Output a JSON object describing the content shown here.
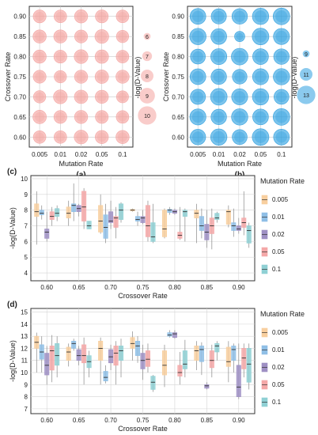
{
  "chart_data": [
    {
      "id": "a",
      "panel_label": "(a)",
      "type": "scatter",
      "xlabel": "Mutation Rate",
      "ylabel": "Crossover Rate",
      "x_categories": [
        "0.005",
        "0.01",
        "0.02",
        "0.05",
        "0.1"
      ],
      "y_categories": [
        "0.60",
        "0.65",
        "0.70",
        "0.75",
        "0.80",
        "0.85",
        "0.90"
      ],
      "color": "#f4a29e",
      "size_legend_title": "-log(D-Value)",
      "size_legend": [
        "6",
        "7",
        "8",
        "9",
        "10"
      ],
      "size_range": [
        5,
        11
      ],
      "values": [
        [
          8.0,
          8.0,
          8.4,
          8.2,
          8.2
        ],
        [
          8.3,
          8.1,
          8.2,
          8.1,
          8.0
        ],
        [
          7.9,
          8.4,
          8.3,
          8.2,
          7.8
        ],
        [
          8.1,
          7.9,
          8.2,
          8.3,
          8.2
        ],
        [
          8.2,
          8.1,
          8.4,
          8.3,
          8.0
        ],
        [
          8.2,
          8.2,
          8.1,
          8.4,
          7.9
        ],
        [
          8.1,
          8.0,
          8.2,
          8.1,
          8.0
        ]
      ]
    },
    {
      "id": "b",
      "panel_label": "(b)",
      "type": "scatter",
      "xlabel": "Mutation Rate",
      "ylabel": "Crossover Rate",
      "x_categories": [
        "0.005",
        "0.01",
        "0.02",
        "0.05",
        "0.1"
      ],
      "y_categories": [
        "0.60",
        "0.65",
        "0.70",
        "0.75",
        "0.80",
        "0.85",
        "0.90"
      ],
      "color": "#2b9fe0",
      "size_legend_title": "-log(D-Value)",
      "size_legend": [
        "9",
        "11",
        "13"
      ],
      "size_range": [
        8,
        14
      ],
      "values": [
        [
          12.0,
          12.3,
          11.8,
          12.4,
          12.1
        ],
        [
          12.2,
          12.0,
          12.3,
          12.1,
          12.4
        ],
        [
          11.9,
          12.4,
          12.2,
          12.3,
          11.8
        ],
        [
          12.1,
          12.0,
          11.7,
          12.2,
          12.3
        ],
        [
          11.8,
          12.2,
          12.4,
          12.1,
          12.0
        ],
        [
          12.3,
          12.1,
          10.2,
          12.4,
          12.2
        ],
        [
          12.1,
          11.9,
          12.0,
          12.3,
          12.4
        ]
      ]
    },
    {
      "id": "c",
      "panel_label": "(c)",
      "type": "box",
      "xlabel": "Crossover Rate",
      "ylabel": "-log(D-Value)",
      "categories": [
        "0.60",
        "0.65",
        "0.70",
        "0.75",
        "0.80",
        "0.85",
        "0.90"
      ],
      "ylim": [
        3.5,
        10.2
      ],
      "yticks": [
        "4",
        "5",
        "6",
        "7",
        "8",
        "9",
        "10"
      ],
      "legend_title": "Mutation Rate",
      "series": [
        {
          "name": "0.005",
          "color": "#f8cf9f",
          "boxes": [
            [
              5.8,
              7.6,
              7.9,
              8.4,
              9.2
            ],
            [
              7.0,
              7.5,
              7.8,
              8.2,
              8.6
            ],
            [
              6.5,
              6.6,
              7.3,
              8.3,
              9.0
            ],
            [
              7.9,
              7.95,
              8.0,
              8.05,
              8.1
            ],
            [
              6.2,
              6.3,
              6.8,
              8.0,
              8.1
            ],
            [
              5.9,
              7.5,
              7.8,
              8.0,
              8.4
            ],
            [
              6.9,
              7.1,
              7.9,
              8.0,
              8.3
            ]
          ]
        },
        {
          "name": "0.01",
          "color": "#8fbfe6",
          "boxes": [
            [
              7.4,
              7.7,
              7.8,
              8.0,
              8.3
            ],
            [
              7.3,
              7.9,
              8.3,
              8.4,
              9.7
            ],
            [
              5.9,
              6.2,
              6.9,
              7.7,
              8.4
            ],
            [
              7.0,
              7.3,
              7.4,
              7.6,
              7.9
            ],
            [
              7.7,
              7.85,
              8.0,
              8.05,
              8.2
            ],
            [
              6.2,
              6.7,
              7.0,
              7.6,
              8.1
            ],
            [
              6.3,
              6.7,
              7.0,
              7.2,
              8.1
            ]
          ]
        },
        {
          "name": "0.02",
          "color": "#9f90c4",
          "boxes": [
            [
              6.0,
              6.2,
              6.6,
              6.8,
              7.9
            ],
            [
              7.6,
              7.9,
              8.1,
              8.3,
              8.4
            ],
            [
              6.8,
              7.2,
              7.3,
              7.9,
              8.6
            ],
            [
              7.1,
              7.2,
              7.5,
              7.6,
              8.0
            ],
            [
              7.7,
              7.8,
              7.9,
              8.0,
              8.1
            ],
            [
              5.6,
              6.1,
              6.6,
              7.1,
              8.0
            ],
            [
              6.5,
              6.7,
              6.8,
              7.0,
              7.5
            ]
          ]
        },
        {
          "name": "0.05",
          "color": "#f4a8a8",
          "boxes": [
            [
              7.0,
              7.4,
              7.6,
              7.9,
              8.2
            ],
            [
              6.8,
              7.3,
              8.2,
              9.2,
              9.4
            ],
            [
              6.2,
              6.9,
              7.5,
              7.6,
              8.2
            ],
            [
              6.0,
              6.3,
              7.0,
              8.3,
              8.6
            ],
            [
              6.1,
              6.2,
              6.4,
              6.6,
              8.2
            ],
            [
              5.5,
              6.5,
              7.0,
              7.5,
              8.1
            ],
            [
              6.4,
              6.9,
              7.2,
              7.5,
              9.2
            ]
          ]
        },
        {
          "name": "0.1",
          "color": "#8fd0d4",
          "boxes": [
            [
              7.3,
              7.6,
              7.8,
              8.1,
              8.3
            ],
            [
              6.8,
              6.8,
              7.0,
              7.3,
              7.3
            ],
            [
              7.2,
              7.4,
              8.0,
              8.4,
              8.5
            ],
            [
              5.9,
              6.0,
              6.3,
              7.2,
              8.4
            ],
            [
              6.0,
              7.6,
              7.9,
              8.0,
              8.1
            ],
            [
              7.2,
              7.4,
              7.5,
              7.8,
              7.9
            ],
            [
              5.6,
              5.9,
              6.7,
              7.0,
              7.2
            ]
          ]
        }
      ]
    },
    {
      "id": "d",
      "panel_label": "(d)",
      "type": "box",
      "xlabel": "Crossover Rate",
      "ylabel": "-log(D-Value)",
      "categories": [
        "0.60",
        "0.65",
        "0.70",
        "0.75",
        "0.80",
        "0.85",
        "0.90"
      ],
      "ylim": [
        6.6,
        15.3
      ],
      "yticks": [
        "7",
        "8",
        "9",
        "10",
        "11",
        "12",
        "13",
        "14",
        "15"
      ],
      "legend_title": "Mutation Rate",
      "series": [
        {
          "name": "0.005",
          "color": "#f8cf9f",
          "boxes": [
            [
              10.0,
              12.0,
              12.5,
              13.0,
              13.3
            ],
            [
              10.5,
              11.0,
              11.7,
              12.1,
              12.4
            ],
            [
              9.0,
              11.0,
              12.0,
              12.6,
              12.9
            ],
            [
              11.0,
              12.0,
              12.4,
              12.9,
              13.4
            ],
            [
              8.8,
              9.8,
              10.6,
              11.8,
              12.3
            ],
            [
              10.2,
              11.0,
              11.8,
              12.2,
              12.6
            ],
            [
              9.2,
              10.5,
              10.9,
              12.1,
              12.6
            ]
          ]
        },
        {
          "name": "0.01",
          "color": "#8fbfe6",
          "boxes": [
            [
              10.0,
              11.1,
              11.7,
              12.3,
              13.0
            ],
            [
              11.8,
              12.0,
              12.4,
              12.6,
              12.8
            ],
            [
              9.1,
              9.3,
              9.6,
              10.1,
              10.6
            ],
            [
              10.8,
              11.4,
              12.2,
              12.6,
              13.0
            ],
            [
              12.9,
              13.0,
              13.1,
              13.3,
              13.5
            ],
            [
              9.8,
              10.9,
              11.9,
              12.2,
              12.5
            ],
            [
              10.0,
              11.0,
              11.9,
              12.2,
              12.4
            ]
          ]
        },
        {
          "name": "0.02",
          "color": "#9f90c4",
          "boxes": [
            [
              9.0,
              9.8,
              10.6,
              11.6,
              12.2
            ],
            [
              10.6,
              11.0,
              11.4,
              11.9,
              12.2
            ],
            [
              10.2,
              10.8,
              11.3,
              11.9,
              12.3
            ],
            [
              9.4,
              10.3,
              11.0,
              11.6,
              12.3
            ],
            [
              12.8,
              12.9,
              13.2,
              13.3,
              13.5
            ],
            [
              8.6,
              8.7,
              8.9,
              9.0,
              9.2
            ],
            [
              7.8,
              8.0,
              8.8,
              10.6,
              12.4
            ]
          ]
        },
        {
          "name": "0.05",
          "color": "#f4a8a8",
          "boxes": [
            [
              9.2,
              10.2,
              11.8,
              12.2,
              13.1
            ],
            [
              9.0,
              10.8,
              11.4,
              12.3,
              12.9
            ],
            [
              9.0,
              10.6,
              11.6,
              12.2,
              12.6
            ],
            [
              10.0,
              10.5,
              11.1,
              11.8,
              12.4
            ],
            [
              9.0,
              9.7,
              10.0,
              10.6,
              11.7
            ],
            [
              9.6,
              10.4,
              11.0,
              11.8,
              12.3
            ],
            [
              9.6,
              10.3,
              11.2,
              12.0,
              12.4
            ]
          ]
        },
        {
          "name": "0.1",
          "color": "#8fd0d4",
          "boxes": [
            [
              9.6,
              10.6,
              11.4,
              12.4,
              13.0
            ],
            [
              9.6,
              10.4,
              10.9,
              11.4,
              11.8
            ],
            [
              9.6,
              11.0,
              11.8,
              12.2,
              12.8
            ],
            [
              8.4,
              8.6,
              9.2,
              9.7,
              9.8
            ],
            [
              9.6,
              10.3,
              10.7,
              11.8,
              12.7
            ],
            [
              11.0,
              11.7,
              12.2,
              12.4,
              12.6
            ],
            [
              8.6,
              9.2,
              10.7,
              12.0,
              12.4
            ]
          ]
        }
      ]
    }
  ]
}
